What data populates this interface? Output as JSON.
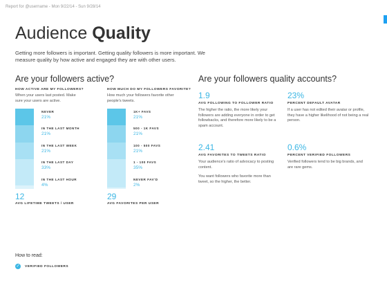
{
  "header": "Report for @username - Mon 9/22/14 - Sun 9/28/14",
  "title": {
    "light": "Audience",
    "bold": "Quality"
  },
  "intro": "Getting more followers is important. Getting quality followers is more important. We measure quality by how active and engaged they are with other users.",
  "sections": [
    {
      "heading": "Are your followers active?",
      "columns": [
        {
          "title": "HOW ACTIVE ARE MY FOLLOWERS?",
          "description": "When your users last posted. Make sure your users are active.",
          "labels": [
            "NEVER",
            "IN THE LAST MONTH",
            "IN THE LAST WEEK",
            "IN THE LAST DAY",
            "IN THE LAST HOUR"
          ],
          "values": [
            21,
            21,
            21,
            33,
            4
          ],
          "value_labels": [
            "21%",
            "21%",
            "21%",
            "33%",
            "4%"
          ],
          "colors": [
            "#5cc6e8",
            "#8dd6ef",
            "#a8e0f4",
            "#c3eaf8",
            "#ddf3fb"
          ],
          "stat": "12",
          "stat_label": "AVG LIFETIME TWEETS / USER"
        },
        {
          "title": "HOW MUCH DO MY FOLLOWERS FAVORITE?",
          "description": "How much your followers favorite other people's tweets.",
          "labels": [
            "1K+ FAVS",
            "500 - 1K FAVS",
            "100 - 500 FAVS",
            "1 - 100 FAVS",
            "NEVER FAV'D"
          ],
          "values": [
            21,
            21,
            21,
            35,
            2
          ],
          "value_labels": [
            "21%",
            "21%",
            "21%",
            "35%",
            "2%"
          ],
          "colors": [
            "#5cc6e8",
            "#8dd6ef",
            "#a8e0f4",
            "#c3eaf8",
            "#ddf3fb"
          ],
          "stat": "29",
          "stat_label": "AVG FAVORITES PER USER"
        }
      ]
    },
    {
      "heading": "Are your followers quality accounts?",
      "stats": [
        {
          "value": "1.9",
          "label": "AVG FOLLOWING TO FOLLOWER RATIO",
          "description": [
            "The higher the ratio, the more likely your followers are adding everyone in order to get followbacks, and therefore more likely to be a spam account."
          ]
        },
        {
          "value": "23%",
          "label": "PERCENT DEFAULT AVATAR",
          "description": [
            "If a user has not edited their avatar or profile, they have a higher likelihood of not being a real person."
          ]
        },
        {
          "value": "2.41",
          "label": "AVG FAVORITES TO TWEETS RATIO",
          "description": [
            "Your audience's ratio of advocacy to posting content.",
            "You want followers who favorite more than tweet, so the higher, the better."
          ]
        },
        {
          "value": "0.6%",
          "label": "PERCENT VERIFIED FOLLOWERS",
          "description": [
            "Verified followers tend to be big brands, and are rare gems."
          ]
        }
      ]
    }
  ],
  "legend": {
    "title": "How to read:",
    "item": "VERIFIED FOLLOWERS"
  }
}
